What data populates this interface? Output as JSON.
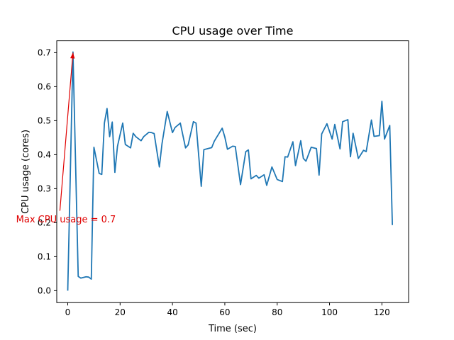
{
  "chart_data": {
    "type": "line",
    "title": "CPU usage over Time",
    "xlabel": "Time (sec)",
    "ylabel": "CPU usage (cores)",
    "xlim": [
      -4.2,
      130.2
    ],
    "ylim": [
      -0.035,
      0.735
    ],
    "xticks": [
      0,
      20,
      40,
      60,
      80,
      100,
      120
    ],
    "yticks": [
      0.0,
      0.1,
      0.2,
      0.3,
      0.4,
      0.5,
      0.6,
      0.7
    ],
    "xtick_labels": [
      "0",
      "20",
      "40",
      "60",
      "80",
      "100",
      "120"
    ],
    "ytick_labels": [
      "0.0",
      "0.1",
      "0.2",
      "0.3",
      "0.4",
      "0.5",
      "0.6",
      "0.7"
    ],
    "grid": false,
    "line_color": "#1f77b4",
    "annotation": {
      "text": "Max CPU usage = 0.7",
      "point": [
        2,
        0.7
      ],
      "text_anchor": [
        -3,
        0.235
      ],
      "color": "#e00000"
    },
    "series": [
      {
        "name": "CPU usage",
        "x": [
          0,
          2,
          4,
          5,
          7,
          8,
          9,
          10,
          12,
          13,
          14,
          15,
          16,
          17,
          18,
          19,
          21,
          22,
          24,
          25,
          26,
          28,
          29,
          31,
          32,
          33,
          35,
          36,
          38,
          40,
          41,
          43,
          45,
          46,
          48,
          49,
          51,
          52,
          55,
          56,
          59,
          60,
          61,
          63,
          64,
          66,
          68,
          69,
          70,
          72,
          73,
          75,
          76,
          78,
          80,
          82,
          83,
          84,
          86,
          87,
          89,
          90,
          91,
          93,
          95,
          96,
          97,
          99,
          101,
          102,
          104,
          105,
          107,
          108,
          109,
          111,
          113,
          114,
          116,
          117,
          119,
          120,
          121,
          123,
          124
        ],
        "y": [
          0.0,
          0.702,
          0.042,
          0.037,
          0.041,
          0.04,
          0.034,
          0.422,
          0.345,
          0.342,
          0.493,
          0.536,
          0.453,
          0.496,
          0.348,
          0.425,
          0.493,
          0.43,
          0.42,
          0.463,
          0.453,
          0.441,
          0.453,
          0.466,
          0.465,
          0.462,
          0.364,
          0.432,
          0.527,
          0.465,
          0.48,
          0.493,
          0.42,
          0.429,
          0.497,
          0.493,
          0.307,
          0.415,
          0.421,
          0.44,
          0.478,
          0.452,
          0.416,
          0.425,
          0.424,
          0.312,
          0.409,
          0.414,
          0.329,
          0.339,
          0.331,
          0.341,
          0.31,
          0.364,
          0.327,
          0.321,
          0.394,
          0.393,
          0.438,
          0.368,
          0.441,
          0.389,
          0.381,
          0.422,
          0.418,
          0.34,
          0.461,
          0.491,
          0.446,
          0.489,
          0.417,
          0.497,
          0.503,
          0.394,
          0.463,
          0.389,
          0.413,
          0.409,
          0.502,
          0.454,
          0.456,
          0.557,
          0.446,
          0.486,
          0.193
        ]
      }
    ]
  }
}
